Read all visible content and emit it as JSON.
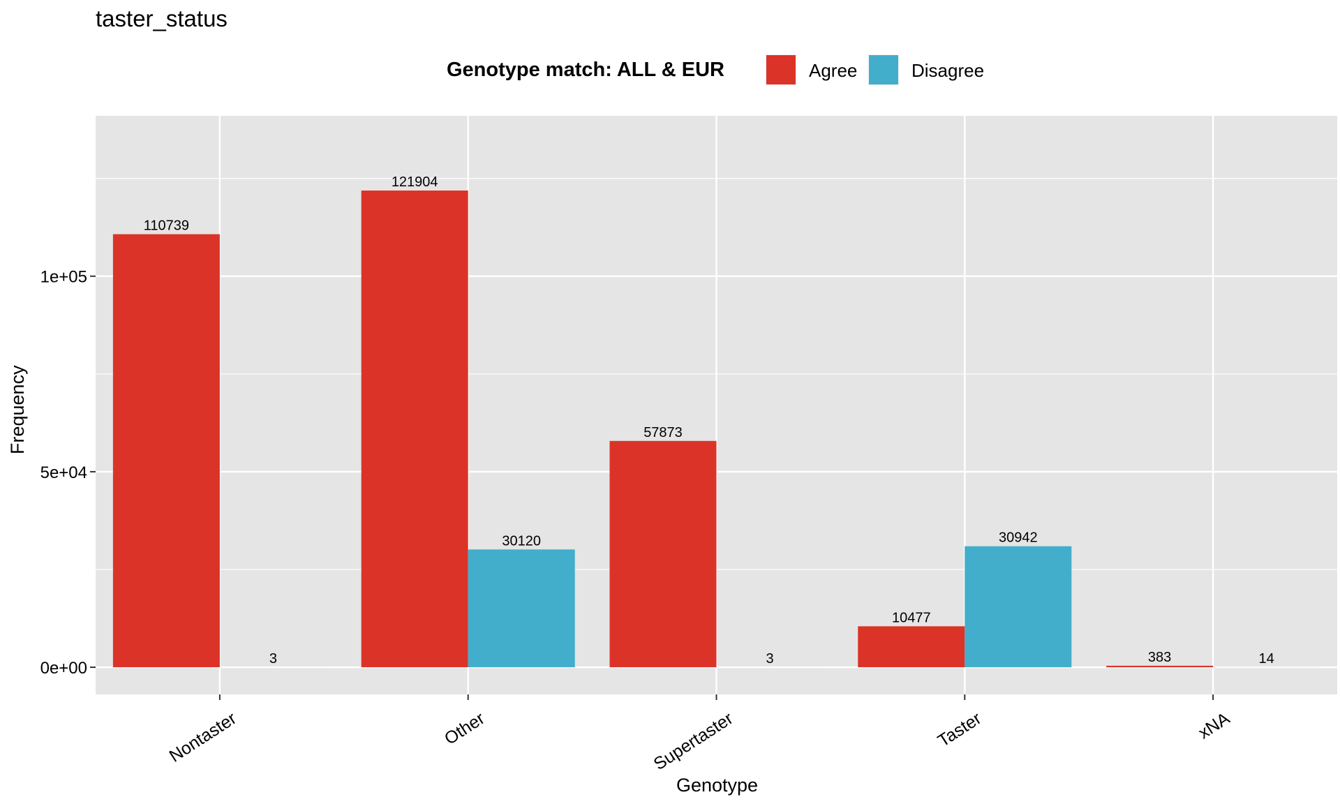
{
  "chart_data": {
    "type": "bar",
    "title": "taster_status",
    "xlabel": "Genotype",
    "ylabel": "Frequency",
    "categories": [
      "Nontaster",
      "Other",
      "Supertaster",
      "Taster",
      "xNA"
    ],
    "series": [
      {
        "name": "Agree",
        "color": "#dc3328",
        "values": [
          110739,
          121904,
          57873,
          10477,
          383
        ]
      },
      {
        "name": "Disagree",
        "color": "#42aecb",
        "values": [
          3,
          30120,
          3,
          30942,
          14
        ]
      }
    ],
    "data_labels": {
      "Agree": [
        "110739",
        "121904",
        "57873",
        "10477",
        "383"
      ],
      "Disagree": [
        "3",
        "30120",
        "3",
        "30942",
        "14"
      ]
    },
    "legend": {
      "title": "Genotype match: ALL & EUR",
      "position": "top",
      "entries": [
        "Agree",
        "Disagree"
      ]
    },
    "ylim": [
      -6950,
      141000
    ],
    "yticks": [
      0,
      50000,
      100000
    ],
    "ytick_labels": [
      "0e+00",
      "5e+04",
      "1e+05"
    ],
    "y_minor_ticks": [
      25000,
      75000,
      125000
    ],
    "grid": true,
    "panel_background": "#e5e5e5",
    "grid_color": "#ffffff"
  }
}
